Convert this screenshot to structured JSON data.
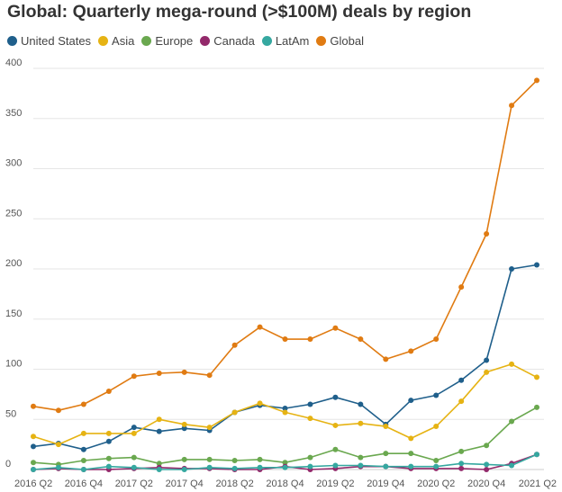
{
  "chart_data": {
    "type": "line",
    "title": "Global: Quarterly mega-round (>$100M) deals by region",
    "xlabel": "",
    "ylabel": "",
    "ylim": [
      0,
      400
    ],
    "yticks": [
      0,
      50,
      100,
      150,
      200,
      250,
      300,
      350,
      400
    ],
    "grid": true,
    "legend_position": "top-left",
    "x": [
      "2016 Q2",
      "2016 Q3",
      "2016 Q4",
      "2017 Q1",
      "2017 Q2",
      "2017 Q3",
      "2017 Q4",
      "2018 Q1",
      "2018 Q2",
      "2018 Q3",
      "2018 Q4",
      "2019 Q1",
      "2019 Q2",
      "2019 Q3",
      "2019 Q4",
      "2020 Q1",
      "2020 Q2",
      "2020 Q3",
      "2020 Q4",
      "2021 Q1",
      "2021 Q2"
    ],
    "xtick_labels": [
      "2016 Q2",
      "2016 Q4",
      "2017 Q2",
      "2017 Q4",
      "2018 Q2",
      "2018 Q4",
      "2019 Q2",
      "2019 Q4",
      "2020 Q2",
      "2020 Q4",
      "2021 Q2"
    ],
    "series": [
      {
        "name": "United States",
        "color": "#1f5f8b",
        "values": [
          23,
          26,
          20,
          28,
          42,
          38,
          41,
          39,
          57,
          64,
          61,
          65,
          72,
          65,
          45,
          69,
          74,
          89,
          109,
          200,
          204
        ]
      },
      {
        "name": "Asia",
        "color": "#e6b313",
        "values": [
          33,
          25,
          36,
          36,
          36,
          50,
          45,
          42,
          57,
          66,
          57,
          51,
          44,
          46,
          43,
          31,
          43,
          68,
          97,
          105,
          92
        ]
      },
      {
        "name": "Europe",
        "color": "#6aa84f",
        "values": [
          7,
          5,
          9,
          11,
          12,
          6,
          10,
          10,
          9,
          10,
          7,
          12,
          20,
          12,
          16,
          16,
          9,
          18,
          24,
          48,
          62
        ]
      },
      {
        "name": "Canada",
        "color": "#93296b",
        "values": [
          0,
          1,
          0,
          0,
          1,
          2,
          1,
          1,
          0,
          0,
          3,
          0,
          1,
          3,
          3,
          1,
          1,
          1,
          0,
          6,
          15
        ]
      },
      {
        "name": "LatAm",
        "color": "#35a8a0",
        "values": [
          0,
          2,
          0,
          3,
          2,
          0,
          0,
          2,
          1,
          2,
          2,
          3,
          4,
          4,
          3,
          3,
          3,
          6,
          5,
          4,
          15
        ]
      },
      {
        "name": "Global",
        "color": "#e07b12",
        "values": [
          63,
          59,
          65,
          78,
          93,
          96,
          97,
          94,
          124,
          142,
          130,
          130,
          141,
          130,
          110,
          118,
          130,
          182,
          235,
          363,
          388
        ]
      }
    ]
  }
}
